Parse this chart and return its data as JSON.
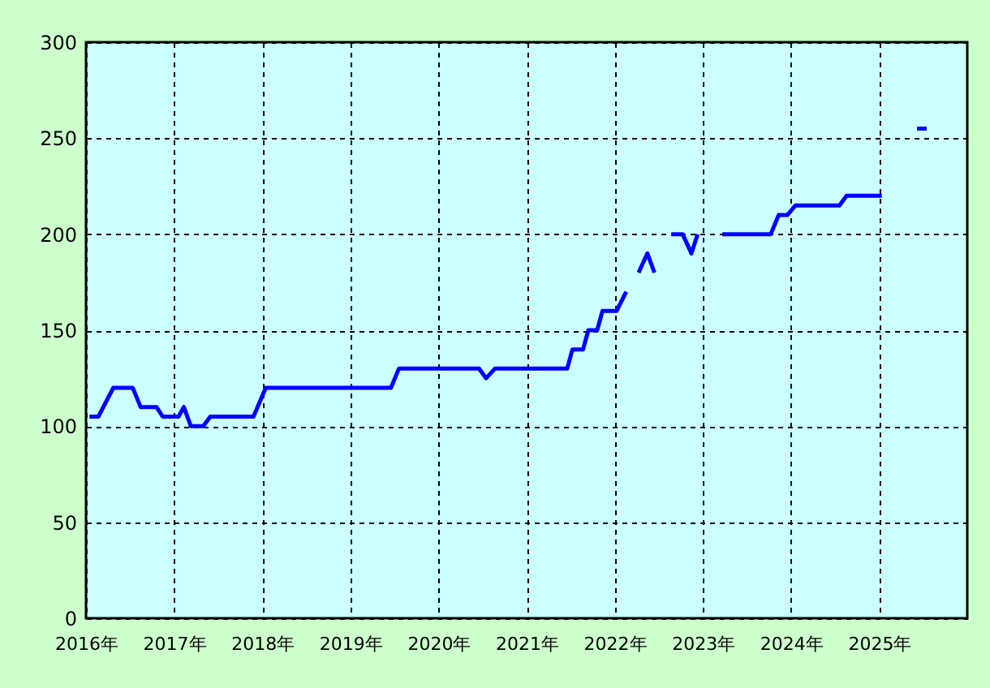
{
  "chart_data": {
    "type": "line",
    "x": [
      2016.04,
      2016.14,
      2016.31,
      2016.53,
      2016.62,
      2016.8,
      2016.87,
      2017.05,
      2017.11,
      2017.19,
      2017.33,
      2017.41,
      2017.9,
      2018.04,
      2019.46,
      2019.55,
      2020.46,
      2020.54,
      2020.64,
      2021.46,
      2021.52,
      2021.64,
      2021.7,
      2021.8,
      2021.86,
      2022.02,
      2022.13,
      2022.2,
      2022.27,
      2022.37,
      2022.45,
      2022.55,
      2022.64,
      2022.77,
      2022.87,
      2022.94,
      2023.08,
      2023.22,
      2023.77,
      2023.86,
      2023.96,
      2024.05,
      2024.55,
      2024.63,
      2025.03,
      2025.25,
      2025.43,
      2025.54
    ],
    "series": [
      {
        "color": "#0000ff",
        "values": [
          105,
          105,
          120,
          120,
          110,
          110,
          105,
          105,
          110,
          100,
          100,
          105,
          105,
          120,
          120,
          130,
          130,
          125,
          130,
          130,
          140,
          140,
          150,
          150,
          160,
          160,
          170,
          null,
          180,
          190,
          180,
          null,
          200,
          200,
          190,
          200,
          null,
          200,
          200,
          210,
          210,
          215,
          215,
          220,
          220,
          null,
          255,
          255
        ]
      }
    ],
    "xlim": [
      2016,
      2026
    ],
    "xticks": [
      {
        "value": 2016,
        "label": "2016年"
      },
      {
        "value": 2017,
        "label": "2017年"
      },
      {
        "value": 2018,
        "label": "2018年"
      },
      {
        "value": 2019,
        "label": "2019年"
      },
      {
        "value": 2020,
        "label": "2020年"
      },
      {
        "value": 2021,
        "label": "2021年"
      },
      {
        "value": 2022,
        "label": "2022年"
      },
      {
        "value": 2023,
        "label": "2023年"
      },
      {
        "value": 2024,
        "label": "2024年"
      },
      {
        "value": 2025,
        "label": "2025年"
      }
    ],
    "ylim": [
      0,
      300
    ],
    "yticks": [
      0,
      50,
      100,
      150,
      200,
      250,
      300
    ],
    "grid": true,
    "marker": "none",
    "line_style": "solid"
  }
}
